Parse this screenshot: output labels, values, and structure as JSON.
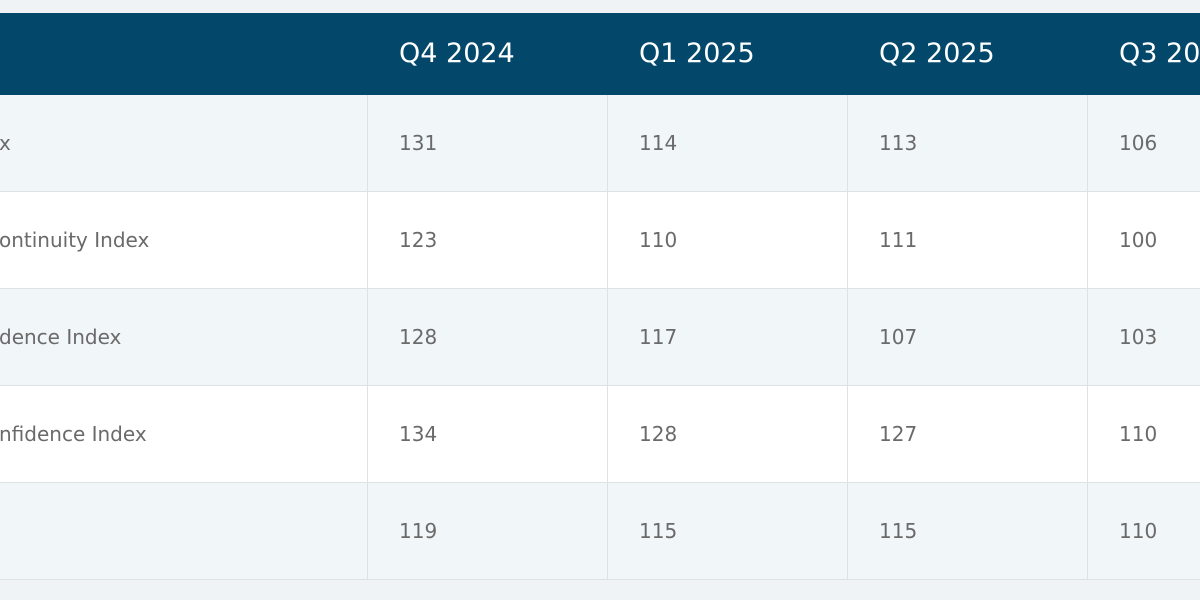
{
  "table": {
    "columns": [
      "Q4 2024",
      "Q1 2025",
      "Q2 2025",
      "Q3 20"
    ],
    "rows": [
      {
        "label": "x",
        "values": [
          131,
          114,
          113,
          106
        ]
      },
      {
        "label": "ontinuity Index",
        "values": [
          123,
          110,
          111,
          100
        ]
      },
      {
        "label": "dence Index",
        "values": [
          128,
          117,
          107,
          103
        ]
      },
      {
        "label": "nfidence Index",
        "values": [
          134,
          128,
          127,
          110
        ]
      },
      {
        "values": [
          119,
          115,
          115,
          110
        ]
      }
    ]
  }
}
